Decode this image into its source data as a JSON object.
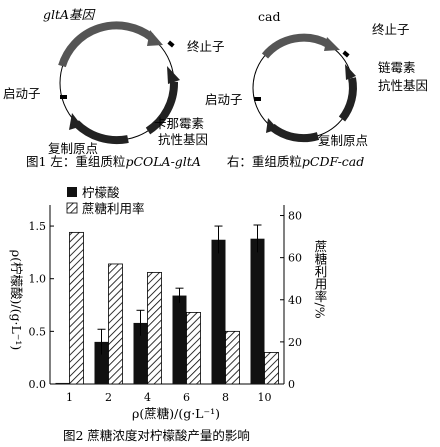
{
  "fig1": {
    "left_plasmid": {
      "gene_label": "gltA基因",
      "terminator_label": "终止子",
      "promoter_label": "启动子",
      "origin_label": "复制原点",
      "resistance_label_line1": "卡那霉素",
      "resistance_label_line2": "抗性基因"
    },
    "right_plasmid": {
      "gene_label": "cad",
      "terminator_label": "终止子",
      "promoter_label": "启动子",
      "origin_label": "复制原点",
      "resistance_label_line1": "链霉素",
      "resistance_label_line2": "抗性基因"
    },
    "caption_left_prefix": "图1 左：重组质粒",
    "caption_left_italic": "pCOLA-gltA",
    "caption_right_prefix": "右：重组质粒",
    "caption_right_italic": "pCDF-cad"
  },
  "chart_data": {
    "type": "bar",
    "caption": "图2 蔗糖浓度对柠檬酸产量的影响",
    "categories": [
      "1",
      "2",
      "4",
      "6",
      "8",
      "10"
    ],
    "xlabel": "ρ(蔗糖)/(g·L⁻¹)",
    "ylabel_left": "ρ(柠檬酸)/(g·L⁻¹)",
    "ylabel_right": "蔗糖利用率/%",
    "ylim_left": [
      0,
      1.7
    ],
    "ylim_right": [
      0,
      85
    ],
    "yticks_left": [
      "0.0",
      "0.5",
      "1.0",
      "1.5"
    ],
    "yticks_right": [
      "0",
      "20",
      "40",
      "60",
      "80"
    ],
    "legend_position": "top-left",
    "series": [
      {
        "name": "柠檬酸",
        "axis": "left",
        "fill": "#111111",
        "values": [
          0.01,
          0.4,
          0.58,
          0.84,
          1.37,
          1.38
        ],
        "errors": [
          0.0,
          0.12,
          0.12,
          0.07,
          0.13,
          0.13
        ]
      },
      {
        "name": "蔗糖利用率",
        "axis": "right",
        "fill": "hatch",
        "values": [
          72,
          57,
          53,
          34,
          25,
          15
        ]
      }
    ]
  }
}
